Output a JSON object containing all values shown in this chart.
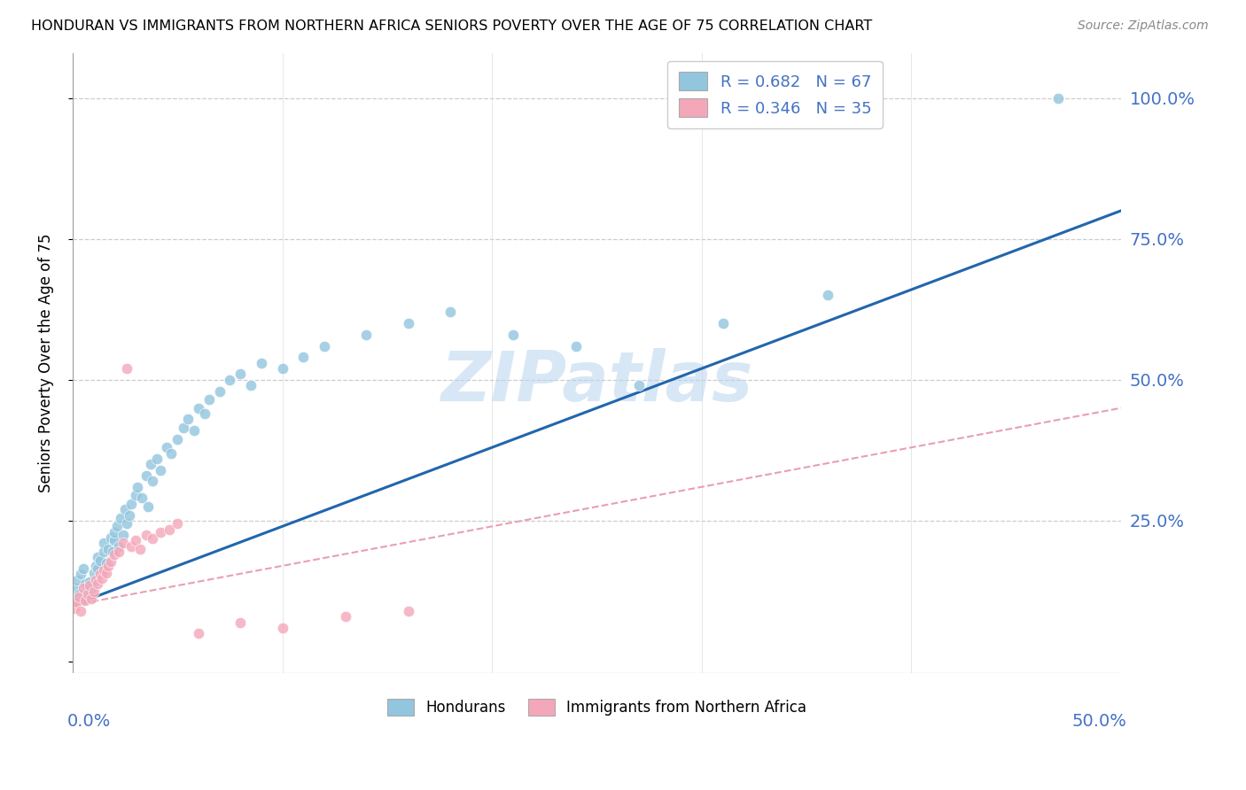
{
  "title": "HONDURAN VS IMMIGRANTS FROM NORTHERN AFRICA SENIORS POVERTY OVER THE AGE OF 75 CORRELATION CHART",
  "source": "Source: ZipAtlas.com",
  "ylabel": "Seniors Poverty Over the Age of 75",
  "xlim": [
    0.0,
    0.5
  ],
  "ylim": [
    -0.02,
    1.08
  ],
  "legend_r1": "R = 0.682",
  "legend_n1": "N = 67",
  "legend_r2": "R = 0.346",
  "legend_n2": "N = 35",
  "blue_color": "#92c5de",
  "pink_color": "#f4a7b9",
  "blue_line_color": "#2166ac",
  "pink_line_color": "#e8a0b0",
  "text_color": "#4472C4",
  "watermark": "ZIPatlas",
  "blue_scatter_x": [
    0.001,
    0.002,
    0.003,
    0.004,
    0.005,
    0.005,
    0.006,
    0.007,
    0.008,
    0.009,
    0.01,
    0.011,
    0.012,
    0.012,
    0.013,
    0.014,
    0.015,
    0.015,
    0.016,
    0.017,
    0.018,
    0.019,
    0.02,
    0.02,
    0.021,
    0.022,
    0.023,
    0.024,
    0.025,
    0.026,
    0.027,
    0.028,
    0.03,
    0.031,
    0.033,
    0.035,
    0.036,
    0.037,
    0.038,
    0.04,
    0.042,
    0.045,
    0.047,
    0.05,
    0.053,
    0.055,
    0.058,
    0.06,
    0.063,
    0.065,
    0.07,
    0.075,
    0.08,
    0.085,
    0.09,
    0.1,
    0.11,
    0.12,
    0.14,
    0.16,
    0.18,
    0.21,
    0.24,
    0.27,
    0.31,
    0.36,
    0.47
  ],
  "blue_scatter_y": [
    0.13,
    0.145,
    0.12,
    0.155,
    0.11,
    0.165,
    0.138,
    0.125,
    0.142,
    0.13,
    0.158,
    0.17,
    0.185,
    0.165,
    0.18,
    0.155,
    0.195,
    0.21,
    0.175,
    0.2,
    0.22,
    0.195,
    0.215,
    0.23,
    0.24,
    0.205,
    0.255,
    0.225,
    0.27,
    0.245,
    0.26,
    0.28,
    0.295,
    0.31,
    0.29,
    0.33,
    0.275,
    0.35,
    0.32,
    0.36,
    0.34,
    0.38,
    0.37,
    0.395,
    0.415,
    0.43,
    0.41,
    0.45,
    0.44,
    0.465,
    0.48,
    0.5,
    0.51,
    0.49,
    0.53,
    0.52,
    0.54,
    0.56,
    0.58,
    0.6,
    0.62,
    0.58,
    0.56,
    0.49,
    0.6,
    0.65,
    1.0
  ],
  "pink_scatter_x": [
    0.001,
    0.002,
    0.003,
    0.004,
    0.005,
    0.006,
    0.007,
    0.008,
    0.009,
    0.01,
    0.011,
    0.012,
    0.013,
    0.014,
    0.015,
    0.016,
    0.017,
    0.018,
    0.02,
    0.022,
    0.024,
    0.026,
    0.028,
    0.03,
    0.032,
    0.035,
    0.038,
    0.042,
    0.046,
    0.05,
    0.06,
    0.08,
    0.1,
    0.13,
    0.16
  ],
  "pink_scatter_y": [
    0.095,
    0.105,
    0.115,
    0.09,
    0.13,
    0.108,
    0.12,
    0.135,
    0.112,
    0.125,
    0.145,
    0.138,
    0.155,
    0.148,
    0.162,
    0.158,
    0.17,
    0.178,
    0.19,
    0.195,
    0.21,
    0.52,
    0.205,
    0.215,
    0.2,
    0.225,
    0.218,
    0.23,
    0.235,
    0.245,
    0.05,
    0.07,
    0.06,
    0.08,
    0.09
  ],
  "blue_trend_x0": 0.0,
  "blue_trend_y0": 0.1,
  "blue_trend_x1": 0.5,
  "blue_trend_y1": 0.8,
  "pink_trend_x0": 0.0,
  "pink_trend_y0": 0.1,
  "pink_trend_x1": 0.5,
  "pink_trend_y1": 0.45
}
